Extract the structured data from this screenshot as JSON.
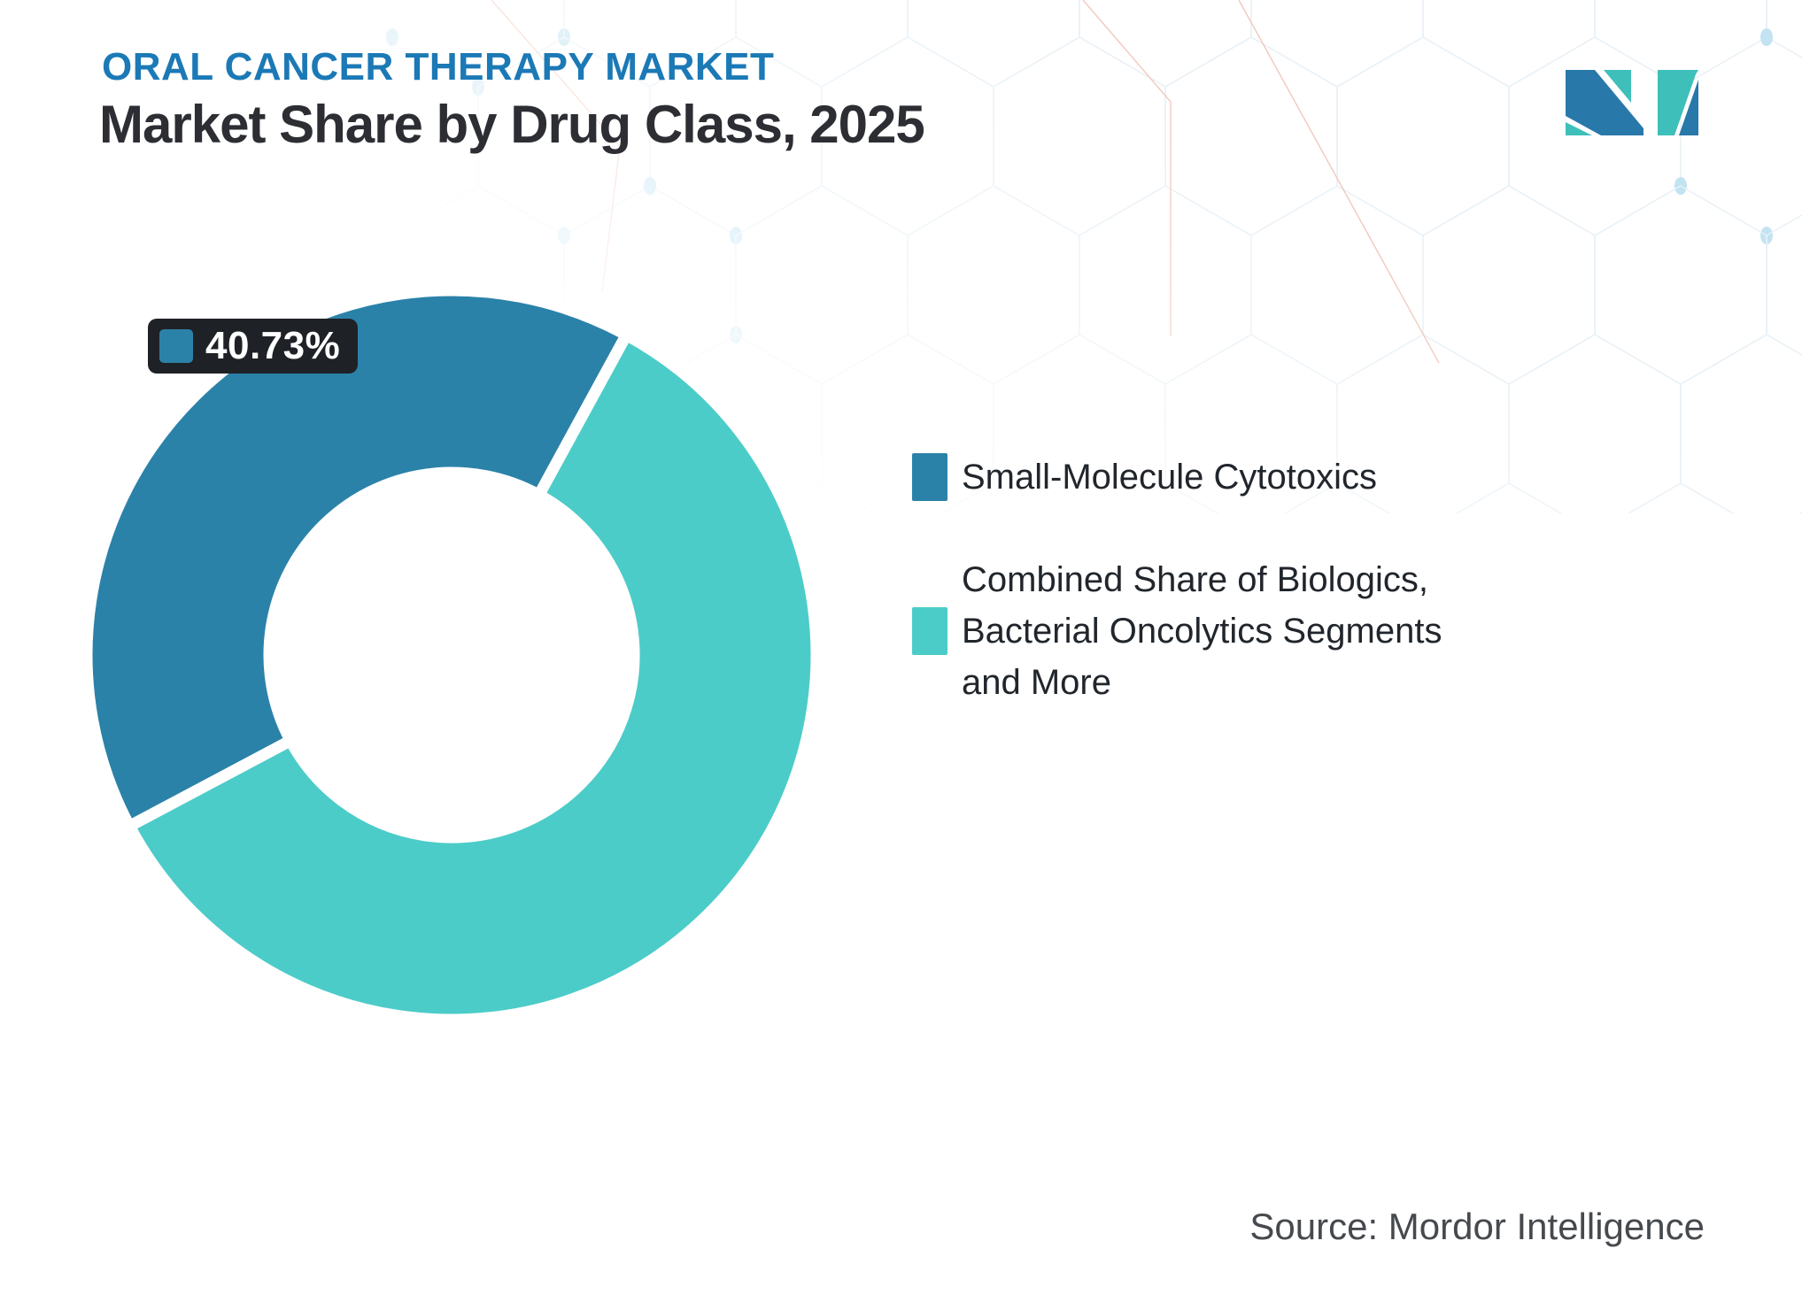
{
  "header": {
    "eyebrow": "ORAL CANCER THERAPY MARKET",
    "title": "Market Share by Drug Class, 2025",
    "eyebrow_color": "#1b79b6",
    "title_color": "#2c2e33"
  },
  "logo": {
    "name": "Mordor Intelligence",
    "blue": "#2878aa",
    "teal": "#3fbfba"
  },
  "chart_data": {
    "type": "pie",
    "subtype": "donut",
    "title": "Market Share by Drug Class, 2025",
    "inner_radius_ratio": 0.5,
    "rotation_deg": 242,
    "legend_position": "right",
    "total": 100,
    "series": [
      {
        "name": "Small-Molecule Cytotoxics",
        "value": 40.73,
        "color": "#2b82a9",
        "data_label": "40.73%"
      },
      {
        "name": "Combined Share of Biologics, Bacterial Oncolytics Segments and More",
        "value": 59.27,
        "color": "#4cccc8",
        "data_label": ""
      }
    ]
  },
  "badge": {
    "text": "40.73%",
    "background": "#1e2126",
    "text_color": "#ffffff"
  },
  "footer": {
    "source": "Source: Mordor Intelligence"
  }
}
